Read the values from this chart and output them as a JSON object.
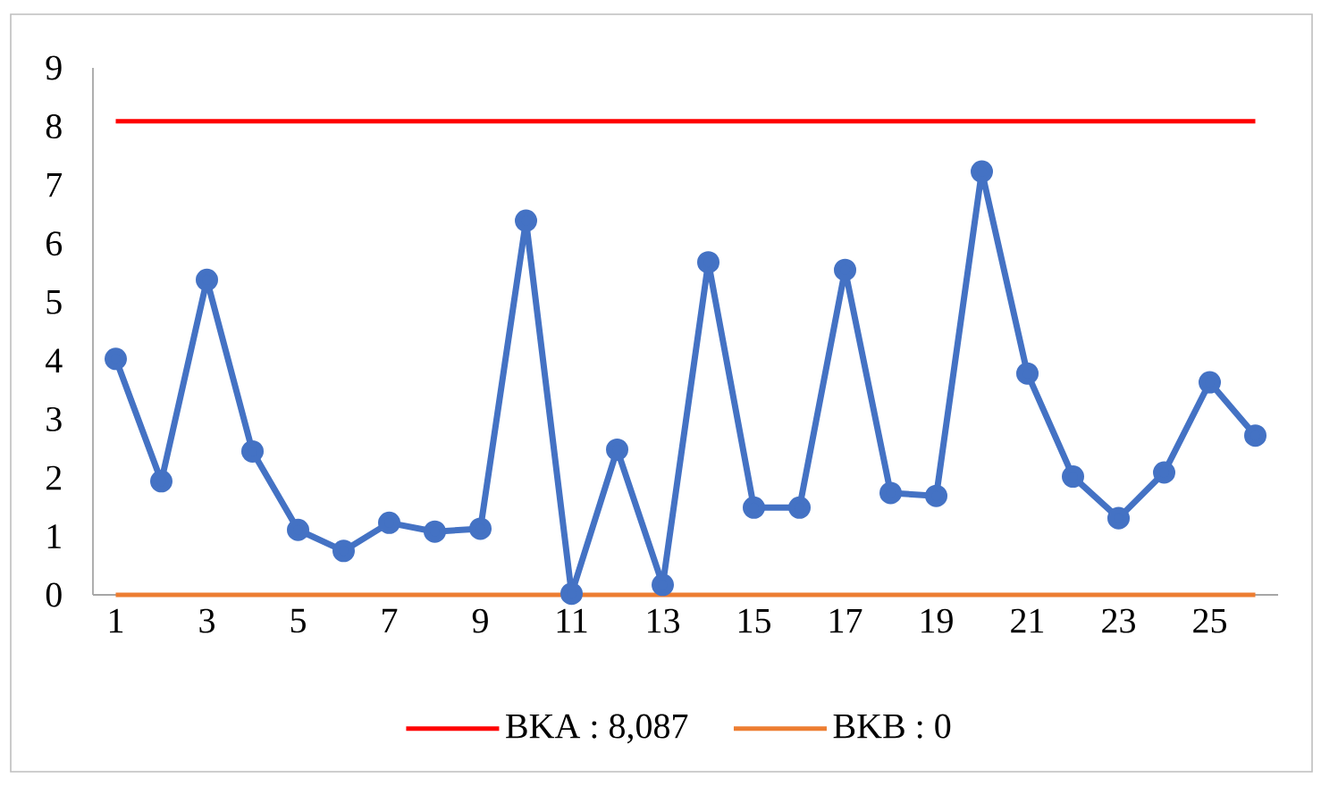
{
  "chart_data": {
    "type": "line",
    "categories": [
      "1",
      null,
      "3",
      null,
      "5",
      null,
      "7",
      null,
      "9",
      null,
      "11",
      null,
      "13",
      null,
      "15",
      null,
      "17",
      null,
      "19",
      null,
      "21",
      null,
      "23",
      null,
      "25",
      null
    ],
    "series": [
      {
        "color": "#4472c4",
        "values": [
          4.03,
          1.94,
          5.38,
          2.45,
          1.11,
          0.75,
          1.23,
          1.08,
          1.13,
          6.39,
          0.02,
          2.48,
          0.17,
          5.68,
          1.49,
          1.49,
          5.55,
          1.74,
          1.69,
          7.23,
          3.78,
          2.02,
          1.31,
          2.09,
          3.63,
          2.72
        ]
      }
    ],
    "marker": "circle",
    "line_style": "solid",
    "ylim": [
      0,
      9
    ],
    "yticks": [
      0,
      1,
      2,
      3,
      4,
      5,
      6,
      7,
      8,
      9
    ],
    "ref_lines": [
      {
        "axis": "y",
        "value": 8.087,
        "label": "BKA : 8,087",
        "color": "#ff0000"
      },
      {
        "axis": "y",
        "value": 0,
        "label": "BKB : 0",
        "color": "#ed7d31"
      }
    ],
    "legend": "bottom"
  }
}
